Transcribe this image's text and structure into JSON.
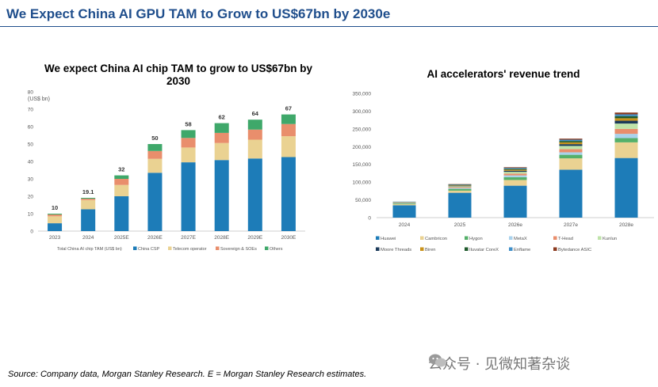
{
  "page": {
    "title": "We Expect China AI GPU TAM to Grow to US$67bn by 2030e",
    "source": "Source: Company data, Morgan Stanley Research. E = Morgan Stanley Research estimates.",
    "watermark": "公众号 · 见微知著杂谈"
  },
  "chart_data": [
    {
      "type": "bar",
      "stacked": true,
      "title": "We expect China AI chip TAM to grow to US$67bn by 2030",
      "ylabel": "(US$ bn)",
      "ylim": [
        0,
        80
      ],
      "yticks": [
        0,
        10,
        20,
        30,
        40,
        50,
        60,
        70,
        80
      ],
      "grid": false,
      "legend_position": "bottom",
      "legend_prefix": "Total China AI chip TAM (US$ bn)",
      "categories": [
        "2023",
        "2024",
        "2025E",
        "2026E",
        "2027E",
        "2028E",
        "2029E",
        "2030E"
      ],
      "totals": [
        10,
        19.1,
        32,
        50,
        58,
        62,
        64,
        67
      ],
      "total_labels": [
        "10",
        "19.1",
        "32",
        "50",
        "58",
        "62",
        "64",
        "67"
      ],
      "series": [
        {
          "name": "China CSP",
          "color": "#1d7cb8",
          "values": [
            4.5,
            12.5,
            20,
            33.5,
            39.5,
            40.8,
            41.7,
            42.5
          ]
        },
        {
          "name": "Telecom operator",
          "color": "#ead292",
          "values": [
            4,
            5.3,
            6.5,
            8,
            8.5,
            9.8,
            10.8,
            12
          ]
        },
        {
          "name": "Sovereign & SOEs",
          "color": "#e98e6c",
          "values": [
            1,
            0.8,
            3.5,
            4.5,
            5.5,
            5.8,
            5.8,
            7
          ]
        },
        {
          "name": "Others",
          "color": "#3fa86a",
          "values": [
            0.5,
            0.5,
            2,
            4,
            4.5,
            5.6,
            5.7,
            5.5
          ]
        }
      ]
    },
    {
      "type": "bar",
      "stacked": true,
      "title": "AI accelerators' revenue trend",
      "ylim": [
        0,
        350000
      ],
      "yticks": [
        0,
        50000,
        100000,
        150000,
        200000,
        250000,
        300000,
        350000
      ],
      "ytick_labels": [
        "0",
        "50,000",
        "100,000",
        "150,000",
        "200,000",
        "250,000",
        "300,000",
        "350,000"
      ],
      "grid": false,
      "legend_position": "bottom",
      "categories": [
        "2024",
        "2025",
        "2026e",
        "2027e",
        "2028e"
      ],
      "series": [
        {
          "name": "Huawei",
          "color": "#1d7cb8",
          "values": [
            35000,
            70000,
            90000,
            135000,
            168000
          ]
        },
        {
          "name": "Cambricon",
          "color": "#ead292",
          "values": [
            3000,
            6000,
            16000,
            32000,
            44000
          ]
        },
        {
          "name": "Hygon",
          "color": "#55b06a",
          "values": [
            2000,
            5000,
            8000,
            10000,
            12000
          ]
        },
        {
          "name": "MetaX",
          "color": "#a9d2ec",
          "values": [
            1000,
            2500,
            5000,
            7000,
            12000
          ]
        },
        {
          "name": "T-Head",
          "color": "#e98e6c",
          "values": [
            1000,
            2500,
            5000,
            9000,
            14000
          ]
        },
        {
          "name": "Kunlun",
          "color": "#bfe3a9",
          "values": [
            1000,
            2500,
            5000,
            9000,
            15000
          ]
        },
        {
          "name": "Moore Threads",
          "color": "#1b3a5a",
          "values": [
            500,
            1500,
            3000,
            5000,
            8000
          ]
        },
        {
          "name": "Biren",
          "color": "#c9921a",
          "values": [
            500,
            1200,
            3000,
            5000,
            7000
          ]
        },
        {
          "name": "Iluvatar CoreX",
          "color": "#1f5a2c",
          "values": [
            500,
            1200,
            2500,
            4000,
            6000
          ]
        },
        {
          "name": "Enflame",
          "color": "#3f8fc9",
          "values": [
            500,
            1000,
            2500,
            3500,
            5000
          ]
        },
        {
          "name": "Bytedance ASIC",
          "color": "#8b3a1f",
          "values": [
            0,
            1000,
            2000,
            3000,
            5000
          ]
        }
      ]
    }
  ]
}
